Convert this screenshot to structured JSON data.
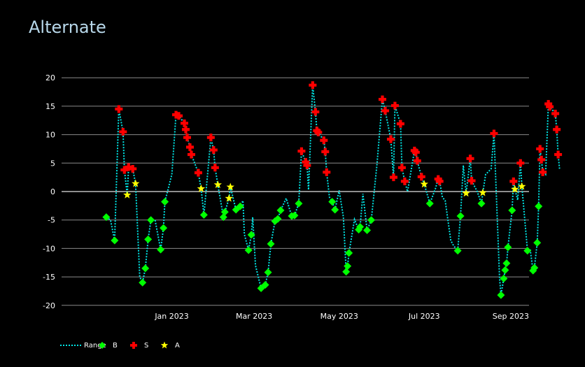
{
  "chart_data": {
    "type": "scatter",
    "title": "Alternate",
    "xlabel": "",
    "ylabel": "",
    "x_tick_labels": [
      "Jan 2023",
      "Mar 2023",
      "May 2023",
      "Jul 2023",
      "Sep 2023"
    ],
    "y_ticks": [
      -20,
      -15,
      -10,
      -5,
      0,
      5,
      10,
      15,
      20
    ],
    "ylim": [
      -21,
      21
    ],
    "xlim": [
      "2022-10-29",
      "2023-09-22"
    ],
    "grid": true,
    "legend_position": "bottom-left",
    "series": [
      {
        "name": "Range",
        "mode": "line",
        "style": "dotted",
        "color": "#00e5e5",
        "points": [
          [
            "2022-11-15",
            -4.5
          ],
          [
            "2022-11-18",
            -5.0
          ],
          [
            "2022-11-21",
            -8.6
          ],
          [
            "2022-11-24",
            14.5
          ],
          [
            "2022-11-27",
            10.5
          ],
          [
            "2022-11-28",
            3.8
          ],
          [
            "2022-11-30",
            -0.6
          ],
          [
            "2022-12-01",
            4.3
          ],
          [
            "2022-12-04",
            4.0
          ],
          [
            "2022-12-06",
            1.4
          ],
          [
            "2022-12-09",
            -15.0
          ],
          [
            "2022-12-11",
            -16.0
          ],
          [
            "2022-12-13",
            -13.5
          ],
          [
            "2022-12-15",
            -8.4
          ],
          [
            "2022-12-17",
            -5.0
          ],
          [
            "2022-12-20",
            -5.0
          ],
          [
            "2022-12-24",
            -10.2
          ],
          [
            "2022-12-26",
            -6.4
          ],
          [
            "2022-12-27",
            -1.8
          ],
          [
            "2023-01-01",
            3.0
          ],
          [
            "2023-01-04",
            13.5
          ],
          [
            "2023-01-06",
            13.3
          ],
          [
            "2023-01-10",
            12.0
          ],
          [
            "2023-01-11",
            10.9
          ],
          [
            "2023-01-12",
            9.5
          ],
          [
            "2023-01-14",
            7.8
          ],
          [
            "2023-01-15",
            6.5
          ],
          [
            "2023-01-20",
            3.3
          ],
          [
            "2023-01-22",
            0.5
          ],
          [
            "2023-01-24",
            -4.1
          ],
          [
            "2023-01-29",
            9.5
          ],
          [
            "2023-01-31",
            7.3
          ],
          [
            "2023-02-01",
            4.2
          ],
          [
            "2023-02-03",
            1.2
          ],
          [
            "2023-02-07",
            -4.5
          ],
          [
            "2023-02-08",
            -3.6
          ],
          [
            "2023-02-11",
            -1.2
          ],
          [
            "2023-02-12",
            0.8
          ],
          [
            "2023-02-16",
            -3.2
          ],
          [
            "2023-02-19",
            -2.6
          ],
          [
            "2023-02-21",
            -1.6
          ],
          [
            "2023-02-22",
            -7.5
          ],
          [
            "2023-02-25",
            -10.3
          ],
          [
            "2023-02-27",
            -7.6
          ],
          [
            "2023-02-28",
            -4.5
          ],
          [
            "2023-03-02",
            -13.0
          ],
          [
            "2023-03-06",
            -17.0
          ],
          [
            "2023-03-09",
            -16.4
          ],
          [
            "2023-03-11",
            -14.2
          ],
          [
            "2023-03-13",
            -9.2
          ],
          [
            "2023-03-16",
            -5.2
          ],
          [
            "2023-03-18",
            -4.8
          ],
          [
            "2023-03-20",
            -3.3
          ],
          [
            "2023-03-24",
            -1.2
          ],
          [
            "2023-03-28",
            -4.3
          ],
          [
            "2023-03-30",
            -4.2
          ],
          [
            "2023-04-02",
            -2.1
          ],
          [
            "2023-04-04",
            7.1
          ],
          [
            "2023-04-07",
            5.2
          ],
          [
            "2023-04-08",
            4.6
          ],
          [
            "2023-04-09",
            0.3
          ],
          [
            "2023-04-12",
            18.7
          ],
          [
            "2023-04-14",
            14.0
          ],
          [
            "2023-04-15",
            10.7
          ],
          [
            "2023-04-16",
            10.4
          ],
          [
            "2023-04-20",
            9.0
          ],
          [
            "2023-04-21",
            7.0
          ],
          [
            "2023-04-22",
            3.4
          ],
          [
            "2023-04-24",
            -1.0
          ],
          [
            "2023-04-26",
            -1.8
          ],
          [
            "2023-04-28",
            -3.2
          ],
          [
            "2023-05-01",
            0.2
          ],
          [
            "2023-05-04",
            -4.5
          ],
          [
            "2023-05-06",
            -14.1
          ],
          [
            "2023-05-07",
            -13.1
          ],
          [
            "2023-05-08",
            -10.8
          ],
          [
            "2023-05-12",
            -4.9
          ],
          [
            "2023-05-15",
            -6.7
          ],
          [
            "2023-05-16",
            -6.2
          ],
          [
            "2023-05-18",
            -0.4
          ],
          [
            "2023-05-21",
            -6.8
          ],
          [
            "2023-05-24",
            -5.0
          ],
          [
            "2023-05-28",
            4.5
          ],
          [
            "2023-06-01",
            16.2
          ],
          [
            "2023-06-03",
            14.2
          ],
          [
            "2023-06-07",
            9.2
          ],
          [
            "2023-06-09",
            2.5
          ],
          [
            "2023-06-10",
            15.1
          ],
          [
            "2023-06-14",
            11.9
          ],
          [
            "2023-06-15",
            4.2
          ],
          [
            "2023-06-17",
            1.8
          ],
          [
            "2023-06-19",
            0.0
          ],
          [
            "2023-06-24",
            7.2
          ],
          [
            "2023-06-25",
            6.9
          ],
          [
            "2023-06-26",
            5.4
          ],
          [
            "2023-06-29",
            2.6
          ],
          [
            "2023-07-01",
            1.3
          ],
          [
            "2023-07-05",
            -2.1
          ],
          [
            "2023-07-09",
            0.5
          ],
          [
            "2023-07-11",
            2.2
          ],
          [
            "2023-07-12",
            1.8
          ],
          [
            "2023-07-14",
            -1.0
          ],
          [
            "2023-07-16",
            -1.6
          ],
          [
            "2023-07-20",
            -8.6
          ],
          [
            "2023-07-22",
            -9.5
          ],
          [
            "2023-07-25",
            -10.4
          ],
          [
            "2023-07-27",
            -4.3
          ],
          [
            "2023-07-29",
            4.6
          ],
          [
            "2023-07-31",
            -0.3
          ],
          [
            "2023-08-03",
            5.8
          ],
          [
            "2023-08-04",
            1.9
          ],
          [
            "2023-08-08",
            0.0
          ],
          [
            "2023-08-11",
            -2.1
          ],
          [
            "2023-08-12",
            -0.2
          ],
          [
            "2023-08-14",
            3.0
          ],
          [
            "2023-08-18",
            4.0
          ],
          [
            "2023-08-20",
            10.2
          ],
          [
            "2023-08-24",
            -15.2
          ],
          [
            "2023-08-25",
            -18.2
          ],
          [
            "2023-08-27",
            -15.3
          ],
          [
            "2023-08-28",
            -13.8
          ],
          [
            "2023-08-29",
            -12.6
          ],
          [
            "2023-08-30",
            -9.8
          ],
          [
            "2023-09-02",
            -3.3
          ],
          [
            "2023-09-03",
            1.8
          ],
          [
            "2023-09-04",
            0.4
          ],
          [
            "2023-09-06",
            -1.5
          ],
          [
            "2023-09-08",
            5.0
          ],
          [
            "2023-09-09",
            0.9
          ],
          [
            "2023-09-13",
            -10.4
          ],
          [
            "2023-09-15",
            -10.3
          ],
          [
            "2023-09-17",
            -13.9
          ],
          [
            "2023-09-18",
            -13.4
          ],
          [
            "2023-09-20",
            -9.0
          ],
          [
            "2023-09-21",
            -2.6
          ],
          [
            "2023-09-22",
            7.5
          ],
          [
            "2023-09-23",
            5.6
          ],
          [
            "2023-09-24",
            3.4
          ],
          [
            "2023-09-26",
            3.0
          ],
          [
            "2023-09-28",
            15.4
          ],
          [
            "2023-09-29",
            14.9
          ],
          [
            "2023-10-03",
            13.7
          ],
          [
            "2023-10-04",
            10.9
          ],
          [
            "2023-10-05",
            6.5
          ],
          [
            "2023-10-06",
            4.0
          ]
        ]
      },
      {
        "name": "B",
        "mode": "markers",
        "marker": "diamond",
        "color": "#00ff00",
        "points": [
          [
            "2022-11-15",
            -4.5
          ],
          [
            "2022-11-21",
            -8.6
          ],
          [
            "2022-12-11",
            -16.0
          ],
          [
            "2022-12-13",
            -13.5
          ],
          [
            "2022-12-15",
            -8.4
          ],
          [
            "2022-12-17",
            -5.0
          ],
          [
            "2022-12-24",
            -10.2
          ],
          [
            "2022-12-26",
            -6.4
          ],
          [
            "2022-12-27",
            -1.8
          ],
          [
            "2023-01-24",
            -4.1
          ],
          [
            "2023-02-07",
            -4.5
          ],
          [
            "2023-02-08",
            -3.6
          ],
          [
            "2023-02-16",
            -3.2
          ],
          [
            "2023-02-19",
            -2.6
          ],
          [
            "2023-02-25",
            -10.3
          ],
          [
            "2023-02-27",
            -7.6
          ],
          [
            "2023-03-06",
            -17.0
          ],
          [
            "2023-03-09",
            -16.4
          ],
          [
            "2023-03-11",
            -14.2
          ],
          [
            "2023-03-13",
            -9.2
          ],
          [
            "2023-03-16",
            -5.2
          ],
          [
            "2023-03-18",
            -4.8
          ],
          [
            "2023-03-20",
            -3.3
          ],
          [
            "2023-03-28",
            -4.3
          ],
          [
            "2023-03-30",
            -4.2
          ],
          [
            "2023-04-02",
            -2.1
          ],
          [
            "2023-04-26",
            -1.8
          ],
          [
            "2023-04-28",
            -3.2
          ],
          [
            "2023-05-06",
            -14.1
          ],
          [
            "2023-05-07",
            -13.1
          ],
          [
            "2023-05-08",
            -10.8
          ],
          [
            "2023-05-15",
            -6.7
          ],
          [
            "2023-05-16",
            -6.2
          ],
          [
            "2023-05-21",
            -6.8
          ],
          [
            "2023-05-24",
            -5.0
          ],
          [
            "2023-07-05",
            -2.1
          ],
          [
            "2023-07-25",
            -10.4
          ],
          [
            "2023-07-27",
            -4.3
          ],
          [
            "2023-08-11",
            -2.1
          ],
          [
            "2023-08-25",
            -18.2
          ],
          [
            "2023-08-27",
            -15.3
          ],
          [
            "2023-08-28",
            -13.8
          ],
          [
            "2023-08-29",
            -12.6
          ],
          [
            "2023-08-30",
            -9.8
          ],
          [
            "2023-09-02",
            -3.3
          ],
          [
            "2023-09-13",
            -10.4
          ],
          [
            "2023-09-17",
            -13.9
          ],
          [
            "2023-09-18",
            -13.4
          ],
          [
            "2023-09-20",
            -9.0
          ],
          [
            "2023-09-21",
            -2.6
          ]
        ]
      },
      {
        "name": "S",
        "mode": "markers",
        "marker": "cross",
        "color": "#ff0000",
        "points": [
          [
            "2022-11-24",
            14.5
          ],
          [
            "2022-11-27",
            10.5
          ],
          [
            "2022-11-28",
            3.8
          ],
          [
            "2022-12-01",
            4.3
          ],
          [
            "2022-12-04",
            4.0
          ],
          [
            "2023-01-04",
            13.5
          ],
          [
            "2023-01-06",
            13.3
          ],
          [
            "2023-01-10",
            12.0
          ],
          [
            "2023-01-11",
            10.9
          ],
          [
            "2023-01-12",
            9.5
          ],
          [
            "2023-01-14",
            7.8
          ],
          [
            "2023-01-15",
            6.5
          ],
          [
            "2023-01-20",
            3.3
          ],
          [
            "2023-01-29",
            9.5
          ],
          [
            "2023-01-31",
            7.3
          ],
          [
            "2023-02-01",
            4.2
          ],
          [
            "2023-04-04",
            7.1
          ],
          [
            "2023-04-07",
            5.2
          ],
          [
            "2023-04-08",
            4.6
          ],
          [
            "2023-04-12",
            18.7
          ],
          [
            "2023-04-14",
            14.0
          ],
          [
            "2023-04-15",
            10.7
          ],
          [
            "2023-04-16",
            10.4
          ],
          [
            "2023-04-20",
            9.0
          ],
          [
            "2023-04-21",
            7.0
          ],
          [
            "2023-04-22",
            3.4
          ],
          [
            "2023-06-01",
            16.2
          ],
          [
            "2023-06-03",
            14.2
          ],
          [
            "2023-06-07",
            9.2
          ],
          [
            "2023-06-09",
            2.5
          ],
          [
            "2023-06-10",
            15.1
          ],
          [
            "2023-06-14",
            11.9
          ],
          [
            "2023-06-15",
            4.2
          ],
          [
            "2023-06-17",
            1.8
          ],
          [
            "2023-06-24",
            7.2
          ],
          [
            "2023-06-25",
            6.9
          ],
          [
            "2023-06-26",
            5.4
          ],
          [
            "2023-06-29",
            2.6
          ],
          [
            "2023-07-11",
            2.2
          ],
          [
            "2023-07-12",
            1.8
          ],
          [
            "2023-08-03",
            5.8
          ],
          [
            "2023-08-04",
            1.9
          ],
          [
            "2023-08-20",
            10.2
          ],
          [
            "2023-09-03",
            1.8
          ],
          [
            "2023-09-08",
            5.0
          ],
          [
            "2023-09-22",
            7.5
          ],
          [
            "2023-09-23",
            5.6
          ],
          [
            "2023-09-24",
            3.4
          ],
          [
            "2023-09-28",
            15.4
          ],
          [
            "2023-09-29",
            14.9
          ],
          [
            "2023-10-03",
            13.7
          ],
          [
            "2023-10-04",
            10.9
          ],
          [
            "2023-10-05",
            6.5
          ]
        ]
      },
      {
        "name": "A",
        "mode": "markers",
        "marker": "star",
        "color": "#ffff00",
        "points": [
          [
            "2022-11-30",
            -0.6
          ],
          [
            "2022-12-06",
            1.4
          ],
          [
            "2023-01-22",
            0.5
          ],
          [
            "2023-02-03",
            1.2
          ],
          [
            "2023-02-11",
            -1.2
          ],
          [
            "2023-02-12",
            0.8
          ],
          [
            "2023-07-01",
            1.3
          ],
          [
            "2023-07-31",
            -0.3
          ],
          [
            "2023-08-12",
            -0.2
          ],
          [
            "2023-09-04",
            0.4
          ],
          [
            "2023-09-09",
            0.9
          ]
        ]
      }
    ]
  }
}
